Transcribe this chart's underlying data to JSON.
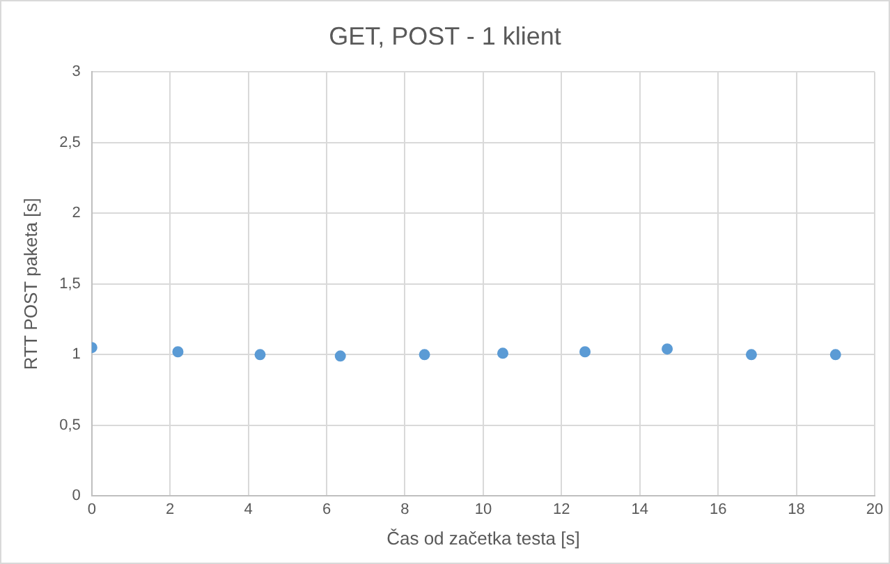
{
  "chart_data": {
    "type": "scatter",
    "title": "GET, POST - 1 klient",
    "xlabel": "Čas od začetka testa [s]",
    "ylabel": "RTT POST paketa [s]",
    "x": [
      0,
      2.2,
      4.3,
      6.35,
      8.5,
      10.5,
      12.6,
      14.7,
      16.85,
      19
    ],
    "series": [
      {
        "color": "#5b9bd5",
        "values": [
          1.05,
          1.02,
          1.0,
          0.99,
          1.0,
          1.01,
          1.02,
          1.04,
          1.0,
          1.0
        ]
      }
    ],
    "xlim": [
      0,
      20
    ],
    "xticks": [
      0,
      2,
      4,
      6,
      8,
      10,
      12,
      14,
      16,
      18,
      20
    ],
    "ylim": [
      0,
      3
    ],
    "yticks": [
      0,
      {
        "value": 0.5,
        "label": "0,5"
      },
      1,
      {
        "value": 1.5,
        "label": "1,5"
      },
      2,
      {
        "value": 2.5,
        "label": "2,5"
      },
      3
    ],
    "grid": true,
    "legend": false,
    "marker": "circle"
  }
}
